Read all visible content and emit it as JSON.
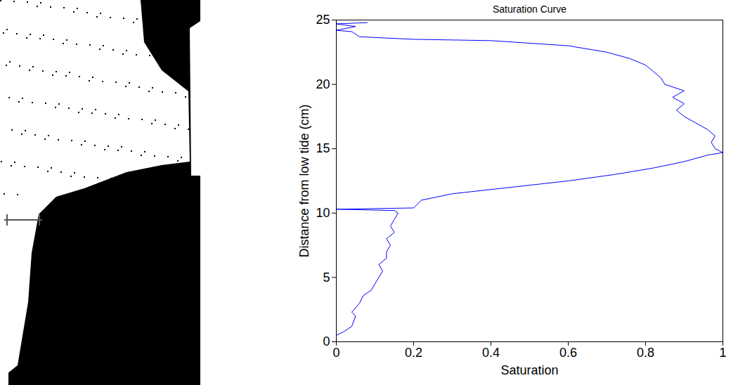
{
  "chart_data": {
    "type": "line",
    "title": "Saturation Curve",
    "x_label": "Saturation",
    "y_label": "Distance from low tide (cm)",
    "color": "#0000ff",
    "xlim": [
      0,
      1
    ],
    "xticks": [
      0,
      0.2,
      0.4,
      0.6,
      0.8,
      1
    ],
    "ylim": [
      0,
      25
    ],
    "yticks": [
      0,
      5,
      10,
      15,
      20,
      25
    ],
    "x": [
      0.0,
      0.02,
      0.04,
      0.05,
      0.04,
      0.06,
      0.07,
      0.09,
      0.1,
      0.11,
      0.12,
      0.11,
      0.13,
      0.13,
      0.14,
      0.13,
      0.15,
      0.14,
      0.15,
      0.16,
      0.15,
      0.0,
      0.2,
      0.22,
      0.3,
      0.45,
      0.6,
      0.72,
      0.82,
      0.9,
      0.96,
      1.0,
      0.98,
      0.97,
      0.98,
      0.96,
      0.93,
      0.9,
      0.88,
      0.9,
      0.87,
      0.9,
      0.85,
      0.84,
      0.82,
      0.8,
      0.76,
      0.7,
      0.6,
      0.4,
      0.2,
      0.06,
      0.04,
      0.0,
      0.05,
      0.0,
      0.08
    ],
    "values": [
      0.5,
      0.8,
      1.2,
      2,
      2.3,
      3,
      3.6,
      4,
      4.5,
      5,
      5.5,
      6,
      6.5,
      7,
      7.5,
      8,
      8.5,
      9,
      9.5,
      10,
      10.2,
      10.3,
      10.4,
      11,
      11.5,
      12,
      12.5,
      13,
      13.5,
      14,
      14.5,
      14.7,
      15,
      15.5,
      16,
      16.5,
      17,
      17.5,
      18,
      18.5,
      19,
      19.5,
      20,
      20.5,
      21,
      21.5,
      22,
      22.5,
      23,
      23.4,
      23.5,
      23.7,
      24.1,
      24.2,
      24.5,
      24.7,
      24.8
    ],
    "marker": "none",
    "line_style": "solid",
    "grid": false
  }
}
